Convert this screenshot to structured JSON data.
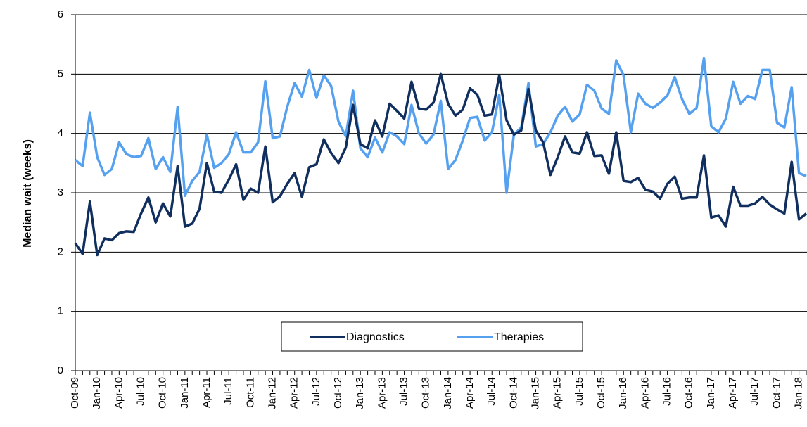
{
  "chart_data": {
    "type": "line",
    "y_label": "Median wait (weeks)",
    "categories": [
      "Oct-09",
      null,
      null,
      "Jan-10",
      null,
      null,
      "Apr-10",
      null,
      null,
      "Jul-10",
      null,
      null,
      "Oct-10",
      null,
      null,
      "Jan-11",
      null,
      null,
      "Apr-11",
      null,
      null,
      "Jul-11",
      null,
      null,
      "Oct-11",
      null,
      null,
      "Jan-12",
      null,
      null,
      "Apr-12",
      null,
      null,
      "Jul-12",
      null,
      null,
      "Oct-12",
      null,
      null,
      "Jan-13",
      null,
      null,
      "Apr-13",
      null,
      null,
      "Jul-13",
      null,
      null,
      "Oct-13",
      null,
      null,
      "Jan-14",
      null,
      null,
      "Apr-14",
      null,
      null,
      "Jul-14",
      null,
      null,
      "Oct-14",
      null,
      null,
      "Jan-15",
      null,
      null,
      "Apr-15",
      null,
      null,
      "Jul-15",
      null,
      null,
      "Oct-15",
      null,
      null,
      "Jan-16",
      null,
      null,
      "Apr-16",
      null,
      null,
      "Jul-16",
      null,
      null,
      "Oct-16",
      null,
      null,
      "Jan-17",
      null,
      null,
      "Apr-17",
      null,
      null,
      "Jul-17",
      null,
      null,
      "Oct-17",
      null,
      null,
      "Jan-18",
      null
    ],
    "series": [
      {
        "name": "Diagnostics",
        "color": "#102f5e",
        "values": [
          2.15,
          1.97,
          2.85,
          1.95,
          2.23,
          2.2,
          2.32,
          2.35,
          2.34,
          2.65,
          2.92,
          2.5,
          2.82,
          2.6,
          3.45,
          2.43,
          2.48,
          2.73,
          3.5,
          3.02,
          3.0,
          3.22,
          3.48,
          2.88,
          3.07,
          3.0,
          3.78,
          2.84,
          2.94,
          3.15,
          3.33,
          2.93,
          3.43,
          3.48,
          3.9,
          3.67,
          3.5,
          3.76,
          4.48,
          3.82,
          3.75,
          4.22,
          3.95,
          4.5,
          4.38,
          4.25,
          4.87,
          4.42,
          4.4,
          4.52,
          5.0,
          4.5,
          4.3,
          4.4,
          4.76,
          4.65,
          4.3,
          4.32,
          4.98,
          4.22,
          3.98,
          4.05,
          4.75,
          4.05,
          3.85,
          3.3,
          3.6,
          3.95,
          3.68,
          3.66,
          4.02,
          3.62,
          3.63,
          3.32,
          4.02,
          3.2,
          3.18,
          3.25,
          3.05,
          3.02,
          2.9,
          3.15,
          3.27,
          2.9,
          2.92,
          2.92,
          3.63,
          2.58,
          2.62,
          2.43,
          3.1,
          2.78,
          2.78,
          2.82,
          2.93,
          2.8,
          2.72,
          2.65,
          3.52,
          2.55,
          2.65
        ]
      },
      {
        "name": "Therapies",
        "color": "#56a1ef",
        "values": [
          3.55,
          3.45,
          4.35,
          3.6,
          3.3,
          3.4,
          3.85,
          3.65,
          3.6,
          3.62,
          3.92,
          3.4,
          3.6,
          3.35,
          4.45,
          2.95,
          3.2,
          3.35,
          3.98,
          3.42,
          3.5,
          3.65,
          4.02,
          3.68,
          3.68,
          3.85,
          4.88,
          3.92,
          3.95,
          4.45,
          4.85,
          4.62,
          5.07,
          4.6,
          4.98,
          4.8,
          4.2,
          3.95,
          4.72,
          3.75,
          3.6,
          3.93,
          3.68,
          4.02,
          3.95,
          3.82,
          4.48,
          4.0,
          3.83,
          3.98,
          4.55,
          3.4,
          3.55,
          3.88,
          4.26,
          4.28,
          3.88,
          4.02,
          4.65,
          3.0,
          3.98,
          4.1,
          4.85,
          3.78,
          3.82,
          4.02,
          4.3,
          4.45,
          4.2,
          4.32,
          4.82,
          4.72,
          4.42,
          4.33,
          5.23,
          4.98,
          4.02,
          4.67,
          4.5,
          4.43,
          4.52,
          4.64,
          4.95,
          4.58,
          4.33,
          4.43,
          5.27,
          4.12,
          4.02,
          4.25,
          4.87,
          4.5,
          4.63,
          4.58,
          5.07,
          5.07,
          4.18,
          4.1,
          4.78,
          3.33,
          3.28
        ]
      }
    ],
    "ylim": [
      0,
      6
    ],
    "yticks": [
      0,
      1,
      2,
      3,
      4,
      5,
      6
    ],
    "grid": true
  }
}
